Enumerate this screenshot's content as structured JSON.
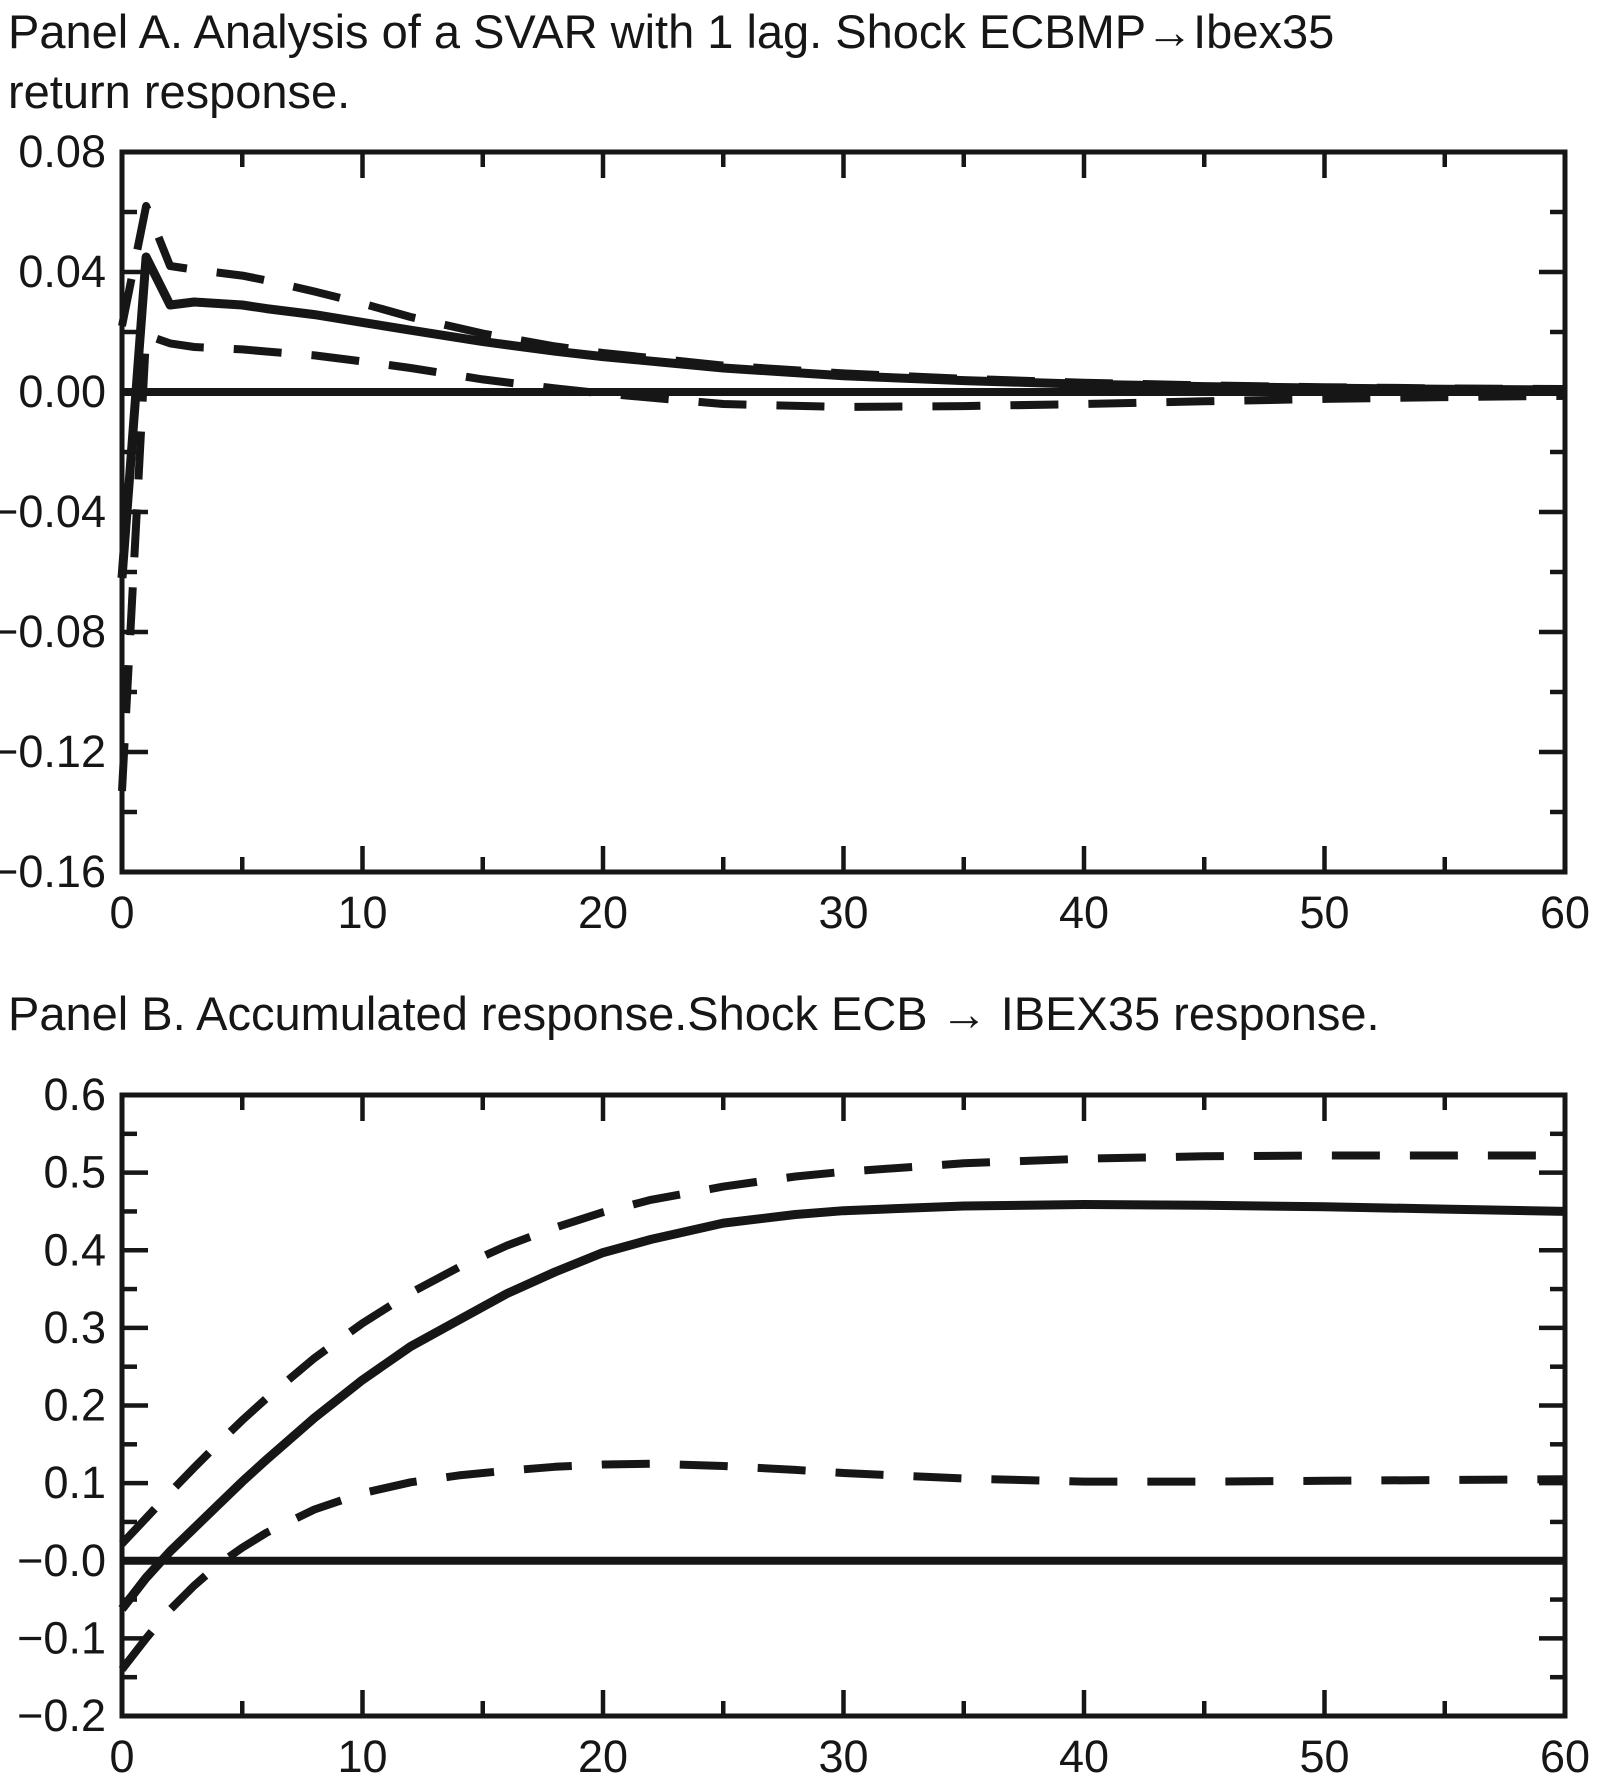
{
  "page": {
    "background": "#ffffff",
    "ink": "#161616"
  },
  "chart_data": [
    {
      "type": "line",
      "panel": "A",
      "title": "Panel A. Analysis of a SVAR with 1 lag. Shock ECBMP→Ibex35 return response.",
      "title_lines": [
        "Panel A. Analysis of a SVAR with 1 lag. Shock ECBMP→Ibex35",
        "return response."
      ],
      "xlabel": "",
      "ylabel": "",
      "xlim": [
        0,
        60
      ],
      "ylim": [
        -0.16,
        0.08
      ],
      "grid": false,
      "legend": null,
      "zero_line": true,
      "x_major_ticks": [
        0,
        10,
        20,
        30,
        40,
        50,
        60
      ],
      "x_tick_labels": [
        "0",
        "10",
        "20",
        "30",
        "40",
        "50",
        "60"
      ],
      "x_minor_step": 5,
      "y_major_ticks": [
        0.08,
        0.04,
        0.0,
        -0.04,
        -0.08,
        -0.12,
        -0.16
      ],
      "y_tick_labels": [
        "0.08",
        "0.04",
        "0.00",
        "−0.04",
        "−0.08",
        "−0.12",
        "−0.16"
      ],
      "y_minor_step": 0.02,
      "series": [
        {
          "name": "point-estimate",
          "style": "solid",
          "x": [
            0,
            1,
            2,
            3,
            4,
            5,
            6,
            8,
            10,
            12,
            15,
            18,
            20,
            25,
            30,
            35,
            40,
            45,
            50,
            55,
            60
          ],
          "y": [
            -0.062,
            0.045,
            0.029,
            0.03,
            0.0295,
            0.029,
            0.0278,
            0.0258,
            0.0232,
            0.0206,
            0.0168,
            0.0136,
            0.0118,
            0.008,
            0.0054,
            0.0038,
            0.0026,
            0.0018,
            0.0013,
            0.0009,
            0.0007
          ]
        },
        {
          "name": "upper-confidence-band",
          "style": "dashed",
          "x": [
            0,
            1,
            2,
            3,
            4,
            5,
            6,
            8,
            10,
            12,
            15,
            18,
            20,
            25,
            30,
            35,
            40,
            45,
            50,
            55,
            60
          ],
          "y": [
            0.022,
            0.062,
            0.042,
            0.0408,
            0.0398,
            0.0388,
            0.0372,
            0.0335,
            0.0295,
            0.025,
            0.0195,
            0.0152,
            0.013,
            0.0088,
            0.0062,
            0.0044,
            0.0031,
            0.0022,
            0.0016,
            0.0012,
            0.001
          ]
        },
        {
          "name": "lower-confidence-band",
          "style": "dashed",
          "x": [
            0,
            1,
            2,
            3,
            4,
            5,
            6,
            8,
            10,
            12,
            15,
            18,
            20,
            25,
            30,
            35,
            40,
            45,
            50,
            55,
            60
          ],
          "y": [
            -0.133,
            0.019,
            0.0162,
            0.015,
            0.0146,
            0.0142,
            0.0135,
            0.0122,
            0.0102,
            0.008,
            0.0042,
            0.0012,
            -0.0005,
            -0.004,
            -0.005,
            -0.0047,
            -0.004,
            -0.0031,
            -0.0023,
            -0.0017,
            -0.0013
          ]
        }
      ]
    },
    {
      "type": "line",
      "panel": "B",
      "title": "Panel B. Accumulated response.Shock ECB → IBEX35 response.",
      "title_lines": [
        "Panel B. Accumulated response.Shock ECB → IBEX35 response."
      ],
      "xlabel": "",
      "ylabel": "",
      "xlim": [
        0,
        60
      ],
      "ylim": [
        -0.2,
        0.6
      ],
      "grid": false,
      "legend": null,
      "zero_line": true,
      "x_major_ticks": [
        0,
        10,
        20,
        30,
        40,
        50,
        60
      ],
      "x_tick_labels": [
        "0",
        "10",
        "20",
        "30",
        "40",
        "50",
        "60"
      ],
      "x_minor_step": 5,
      "y_major_ticks": [
        0.6,
        0.5,
        0.4,
        0.3,
        0.2,
        0.1,
        0.0,
        -0.1,
        -0.2
      ],
      "y_tick_labels": [
        "0.6",
        "0.5",
        "0.4",
        "0.3",
        "0.2",
        "0.1",
        "−0.0",
        "−0.1",
        "−0.2"
      ],
      "y_minor_step": 0.05,
      "series": [
        {
          "name": "point-estimate",
          "style": "solid",
          "x": [
            0,
            1,
            2,
            3,
            4,
            5,
            6,
            8,
            10,
            12,
            14,
            16,
            18,
            20,
            22,
            25,
            28,
            30,
            35,
            40,
            45,
            50,
            55,
            60
          ],
          "y": [
            -0.062,
            -0.022,
            0.012,
            0.042,
            0.072,
            0.102,
            0.13,
            0.184,
            0.233,
            0.276,
            0.31,
            0.344,
            0.372,
            0.397,
            0.414,
            0.435,
            0.446,
            0.451,
            0.457,
            0.459,
            0.458,
            0.456,
            0.453,
            0.45
          ]
        },
        {
          "name": "upper-confidence-band",
          "style": "dashed",
          "x": [
            0,
            1,
            2,
            3,
            4,
            5,
            6,
            8,
            10,
            12,
            14,
            16,
            18,
            20,
            22,
            25,
            28,
            30,
            35,
            40,
            45,
            50,
            55,
            60
          ],
          "y": [
            0.022,
            0.055,
            0.088,
            0.12,
            0.151,
            0.181,
            0.209,
            0.261,
            0.306,
            0.345,
            0.378,
            0.406,
            0.429,
            0.449,
            0.465,
            0.482,
            0.495,
            0.501,
            0.512,
            0.518,
            0.521,
            0.522,
            0.522,
            0.522
          ]
        },
        {
          "name": "lower-confidence-band",
          "style": "dashed",
          "x": [
            0,
            1,
            2,
            3,
            4,
            5,
            6,
            8,
            10,
            12,
            14,
            16,
            18,
            20,
            22,
            25,
            28,
            30,
            35,
            40,
            45,
            50,
            55,
            60
          ],
          "y": [
            -0.14,
            -0.1,
            -0.063,
            -0.032,
            -0.005,
            0.017,
            0.036,
            0.066,
            0.087,
            0.101,
            0.11,
            0.116,
            0.121,
            0.124,
            0.125,
            0.122,
            0.117,
            0.113,
            0.106,
            0.102,
            0.102,
            0.103,
            0.104,
            0.105
          ]
        }
      ]
    }
  ]
}
